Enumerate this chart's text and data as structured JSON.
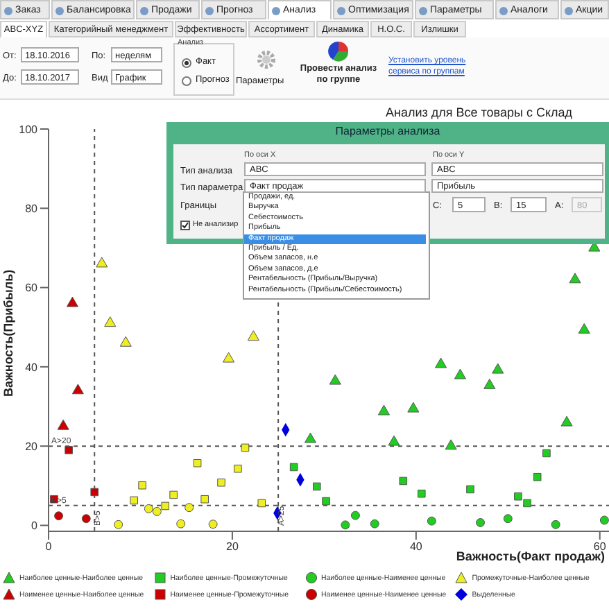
{
  "chart_data": {
    "type": "scatter",
    "title": "Анализ для Все товары с Склад",
    "xlabel": "Важность(Факт продаж)",
    "ylabel": "Важность(Прибыль)",
    "xlim": [
      0,
      61
    ],
    "ylim": [
      -1.5,
      100
    ],
    "xticks": [
      0,
      20,
      40,
      60
    ],
    "yticks": [
      0,
      20,
      40,
      60,
      80,
      100
    ],
    "legend": "bottom",
    "ref_lines": [
      {
        "axis": "x",
        "value": 5,
        "label": "B>5",
        "color": "#555555",
        "line_style": "dashed"
      },
      {
        "axis": "x",
        "value": 25,
        "label": "A>25",
        "color": "#555555",
        "line_style": "dashed"
      },
      {
        "axis": "y",
        "value": 20,
        "label": "A>20",
        "color": "#555555",
        "line_style": "dashed"
      },
      {
        "axis": "y",
        "value": 5,
        "label": "B>5",
        "color": "#555555",
        "line_style": "dashed"
      }
    ],
    "series": [
      {
        "name": "Наиболее ценные-Наиболее ценные",
        "color": "#22cc22",
        "marker": "triangle",
        "x": [
          59.4,
          57.3,
          58.3,
          42.7,
          48.9,
          31.2,
          44.8,
          48,
          36.5,
          39.7,
          28.5,
          37.6,
          43.8,
          56.4
        ],
        "values": [
          70,
          62,
          49.3,
          40.6,
          39.2,
          36.4,
          37.8,
          35.3,
          28.7,
          29.4,
          21.7,
          21,
          20,
          25.9
        ]
      },
      {
        "name": "Наиболее ценные-Промежуточные",
        "color": "#22cc22",
        "marker": "square",
        "x": [
          26.7,
          29.2,
          30.2,
          38.6,
          40.6,
          45.9,
          51.1,
          52.1,
          53.2,
          54.2
        ],
        "values": [
          14.7,
          9.8,
          6.1,
          11.2,
          8,
          9.1,
          7.3,
          5.6,
          12.2,
          18.2
        ]
      },
      {
        "name": "Наиболее ценные-Наименее ценные",
        "color": "#22cc22",
        "marker": "circle",
        "x": [
          32.3,
          33.4,
          35.5,
          41.7,
          47,
          50,
          55.2,
          60.5
        ],
        "values": [
          0.1,
          2.5,
          0.4,
          1.1,
          0.7,
          1.7,
          0.2,
          1.3
        ]
      },
      {
        "name": "Промежуточные-Наиболее ценные",
        "color": "#eeee22",
        "marker": "triangle",
        "x": [
          5.8,
          6.7,
          8.4,
          19.6,
          22.3
        ],
        "values": [
          66,
          51,
          46,
          42,
          47.5
        ]
      },
      {
        "name": "Наименее ценные-Наиболее ценные",
        "color": "#cc0000",
        "marker": "triangle",
        "x": [
          2.6,
          3.2,
          1.6
        ],
        "values": [
          56,
          34,
          25
        ]
      },
      {
        "name": "Наименее ценные-Промежуточные",
        "color": "#cc0000",
        "marker": "square",
        "x": [
          2.2,
          0.6,
          5
        ],
        "values": [
          19,
          6.6,
          8.4
        ]
      },
      {
        "name": "Наименее ценные-Наименее ценные",
        "color": "#cc0000",
        "marker": "circle",
        "x": [
          1.1,
          4.1
        ],
        "values": [
          2.4,
          1.7
        ]
      },
      {
        "name": "Выделенные",
        "color": "#0000dd",
        "marker": "diamond",
        "x": [
          25.8,
          27.4,
          24.9
        ],
        "values": [
          24.1,
          11.5,
          3.1
        ]
      },
      {
        "color": "#eeee22",
        "marker": "square",
        "x": [
          10.2,
          9.3,
          12.7,
          13.6,
          16.2,
          17,
          18.8,
          20.6,
          21.4,
          23.2
        ],
        "values": [
          10.1,
          6.3,
          4.9,
          7.7,
          15.7,
          6.6,
          10.8,
          14.3,
          19.6,
          5.6
        ]
      },
      {
        "color": "#eeee22",
        "marker": "circle",
        "x": [
          7.6,
          10.9,
          11.8,
          14.4,
          15.3,
          17.9
        ],
        "values": [
          0.2,
          4.2,
          3.5,
          0.4,
          4.5,
          0.3
        ]
      }
    ],
    "annotations": [
      "Заказ",
      "Балансировка",
      "Продажи",
      "Прогноз",
      "Анализ",
      "Оптимизация",
      "Параметры",
      "Аналоги",
      "Акции",
      "ABC-XYZ",
      "Категорийный менеджмент",
      "Эффективность",
      "Ассортимент",
      "Динамика",
      "Н.О.С.",
      "Излишки",
      "От:",
      "18.10.2016",
      "До:",
      "18.10.2017",
      "По:",
      "неделям",
      "Вид",
      "График",
      "Анализ",
      "Факт",
      "Прогноз",
      "Параметры",
      "Провести анализ по группе",
      "Установить уровень сервиса по группам",
      "Параметры анализа",
      "По оси X",
      "По оси Y",
      "Тип анализа",
      "ABC",
      "ABC",
      "Тип параметра",
      "Факт продаж",
      "Прибыль",
      "Границы",
      "C:",
      "5",
      "B:",
      "15",
      "A:",
      "80",
      "Не анализир",
      "Продажи, ед.",
      "Выручка",
      "Себестоимость",
      "Прибыль",
      "Факт продаж",
      "Прибыль / Ед.",
      "Объем запасов, н.е",
      "Объем запасов, д.е",
      "Рентабельность (Прибыль/Выручка)",
      "Рентабельность (Прибыль/Себестоимость)"
    ]
  }
}
